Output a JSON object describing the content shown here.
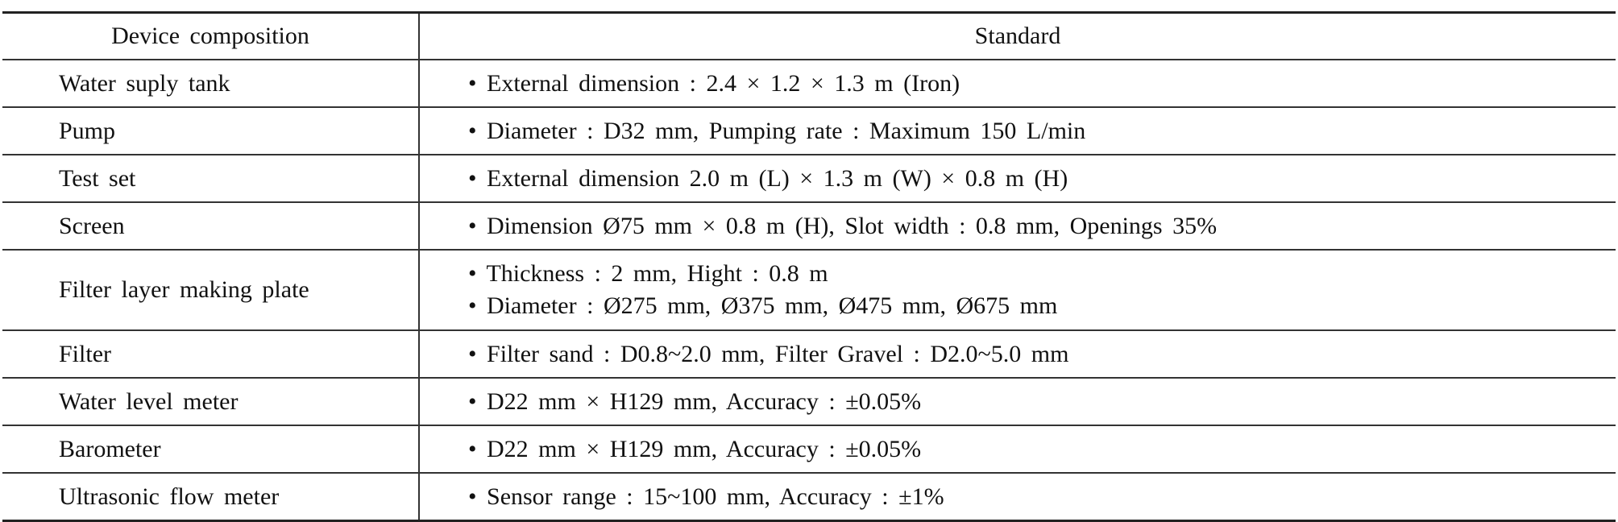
{
  "table": {
    "header": [
      "Device composition",
      "Standard"
    ],
    "rows": [
      {
        "device": "Water suply tank",
        "standard": [
          "• External dimension : 2.4 × 1.2 × 1.3 m (Iron)"
        ]
      },
      {
        "device": "Pump",
        "standard": [
          "• Diameter : D32 mm, Pumping rate : Maximum 150 L/min"
        ]
      },
      {
        "device": "Test set",
        "standard": [
          "• External dimension 2.0 m (L) × 1.3 m (W) × 0.8 m (H)"
        ]
      },
      {
        "device": "Screen",
        "standard": [
          "• Dimension Ø75 mm × 0.8 m (H), Slot width : 0.8 mm, Openings 35%"
        ]
      },
      {
        "device": "Filter layer making plate",
        "standard": [
          "• Thickness : 2 mm, Hight : 0.8 m",
          "• Diameter : Ø275 mm, Ø375 mm, Ø475 mm, Ø675 mm"
        ]
      },
      {
        "device": "Filter",
        "standard": [
          "• Filter sand : D0.8~2.0 mm, Filter Gravel : D2.0~5.0 mm"
        ]
      },
      {
        "device": "Water level meter",
        "standard": [
          "• D22 mm × H129 mm, Accuracy : ±0.05%"
        ]
      },
      {
        "device": "Barometer",
        "standard": [
          "• D22 mm × H129 mm, Accuracy : ±0.05%"
        ]
      },
      {
        "device": "Ultrasonic flow meter",
        "standard": [
          "• Sensor range : 15~100 mm, Accuracy : ±1%"
        ]
      }
    ]
  }
}
